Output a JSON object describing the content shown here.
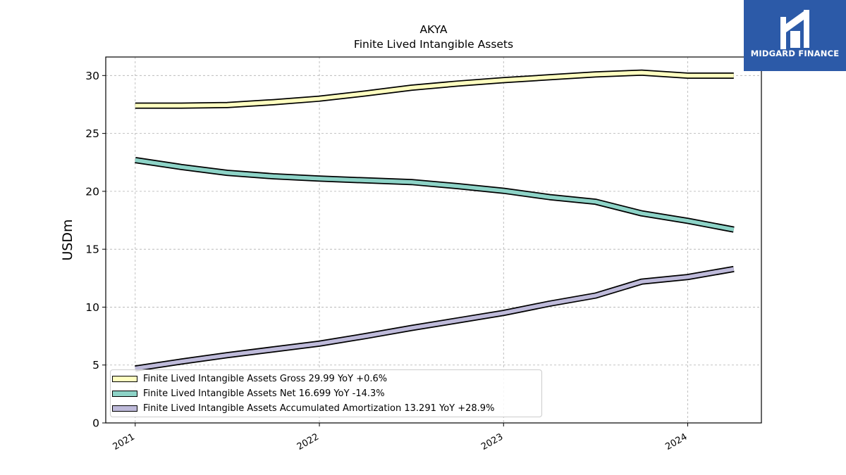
{
  "logo": {
    "text": "MIDGARD FINANCE",
    "color": "#2c5aa8"
  },
  "chart_data": {
    "type": "line",
    "title": "AKYA",
    "subtitle": "Finite Lived Intangible Assets",
    "ylabel": "USDm",
    "xlabel": "",
    "ylim": [
      0,
      31.6
    ],
    "yticks": [
      0,
      5,
      10,
      15,
      20,
      25,
      30
    ],
    "xticks": [
      "2021",
      "2022",
      "2023",
      "2024"
    ],
    "xlim": [
      2020.84,
      2024.4
    ],
    "grid": true,
    "legend_position": "lower-left",
    "x": [
      2021.0,
      2021.25,
      2021.5,
      2021.75,
      2022.0,
      2022.25,
      2022.5,
      2022.75,
      2023.0,
      2023.25,
      2023.5,
      2023.75,
      2024.0,
      2024.25
    ],
    "series": [
      {
        "name": "Finite Lived Intangible Assets Gross",
        "legend_label": "Finite Lived Intangible Assets Gross  29.99 YoY +0.6%",
        "color": "#ffffc0",
        "values": [
          27.4,
          27.4,
          27.45,
          27.7,
          28.0,
          28.45,
          28.95,
          29.3,
          29.6,
          29.85,
          30.1,
          30.25,
          29.99,
          29.99
        ]
      },
      {
        "name": "Finite Lived Intangible Assets Net",
        "legend_label": "Finite Lived Intangible Assets Net  16.699 YoY -14.3%",
        "color": "#8dd3c7",
        "values": [
          22.7,
          22.1,
          21.6,
          21.3,
          21.1,
          20.95,
          20.8,
          20.45,
          20.05,
          19.5,
          19.1,
          18.1,
          17.45,
          16.699
        ]
      },
      {
        "name": "Finite Lived Intangible Assets Accumulated Amortization",
        "legend_label": "Finite Lived Intangible Assets Accumulated Amortization  13.291 YoY +28.9%",
        "color": "#bebada",
        "values": [
          4.7,
          5.3,
          5.85,
          6.35,
          6.85,
          7.5,
          8.2,
          8.85,
          9.5,
          10.3,
          11.0,
          12.2,
          12.6,
          13.291
        ]
      }
    ]
  }
}
